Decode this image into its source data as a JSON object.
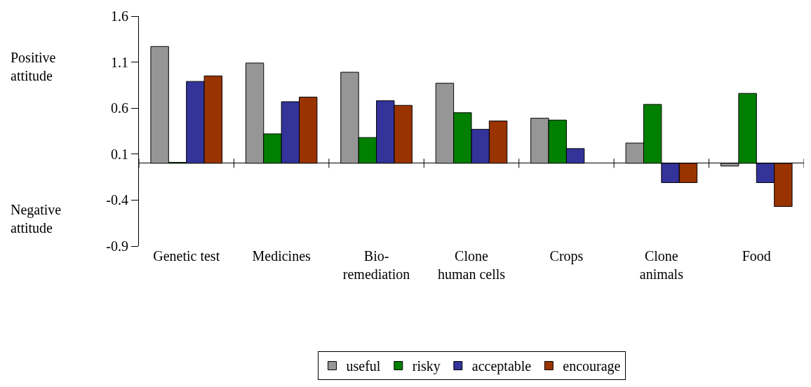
{
  "chart_data": {
    "type": "bar",
    "categories": [
      "Genetic test",
      "Medicines",
      "Bio-remediation",
      "Clone human cells",
      "Crops",
      "Clone animals",
      "Food"
    ],
    "series": [
      {
        "name": "useful",
        "color": "#969696",
        "values": [
          1.27,
          1.09,
          0.99,
          0.87,
          0.49,
          0.22,
          -0.03
        ]
      },
      {
        "name": "risky",
        "color": "#007f00",
        "values": [
          0.01,
          0.32,
          0.28,
          0.55,
          0.47,
          0.64,
          0.76
        ]
      },
      {
        "name": "acceptable",
        "color": "#333399",
        "values": [
          0.89,
          0.67,
          0.68,
          0.37,
          0.16,
          -0.21,
          -0.21
        ]
      },
      {
        "name": "encourage",
        "color": "#993300",
        "values": [
          0.95,
          0.72,
          0.63,
          0.46,
          null,
          -0.21,
          -0.47
        ]
      }
    ],
    "ylim": [
      -0.9,
      1.6
    ],
    "yticks": [
      1.6,
      1.1,
      0.6,
      0.1,
      -0.4,
      -0.9
    ],
    "annotations": [
      "Positive attitude",
      "Negative attitude"
    ],
    "legend": "bottom"
  }
}
